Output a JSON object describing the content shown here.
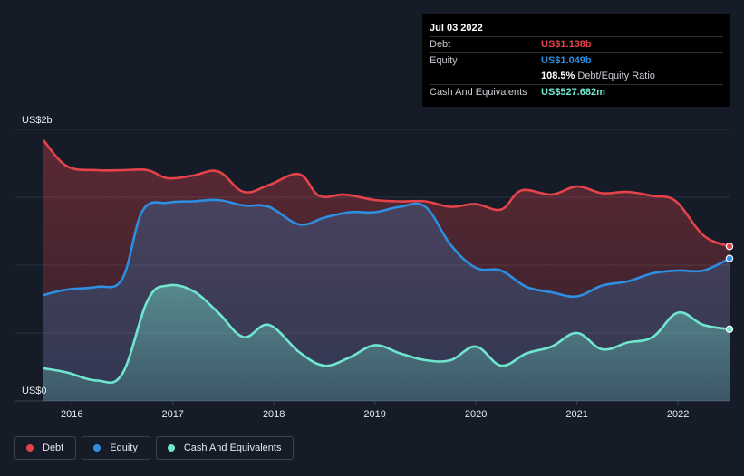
{
  "tooltip": {
    "date": "Jul 03 2022",
    "debt_label": "Debt",
    "debt_value": "US$1.138b",
    "equity_label": "Equity",
    "equity_value": "US$1.049b",
    "ratio_value": "108.5%",
    "ratio_label": "Debt/Equity Ratio",
    "cash_label": "Cash And Equivalents",
    "cash_value": "US$527.682m"
  },
  "legend": {
    "debt": "Debt",
    "equity": "Equity",
    "cash": "Cash And Equivalents"
  },
  "colors": {
    "debt": "#e5434a",
    "equity": "#2d8fe1",
    "cash": "#71e6cf",
    "background": "#151b27"
  },
  "chart_data": {
    "type": "area",
    "title": "",
    "xlabel": "",
    "ylabel": "",
    "y_top_label": "US$2b",
    "y_bottom_label": "US$0",
    "ylim": [
      0,
      2.0
    ],
    "xlim": [
      2015.72,
      2022.51
    ],
    "x_ticks": [
      "2016",
      "2017",
      "2018",
      "2019",
      "2020",
      "2021",
      "2022"
    ],
    "grid": true,
    "legend_position": "bottom-left",
    "series": [
      {
        "name": "Debt",
        "x": [
          2015.72,
          2015.95,
          2016.25,
          2016.5,
          2016.75,
          2016.95,
          2017.2,
          2017.45,
          2017.7,
          2017.95,
          2018.25,
          2018.45,
          2018.7,
          2019.0,
          2019.25,
          2019.5,
          2019.75,
          2020.0,
          2020.25,
          2020.45,
          2020.75,
          2021.0,
          2021.25,
          2021.5,
          2021.75,
          2021.98,
          2022.25,
          2022.51
        ],
        "values": [
          1.92,
          1.73,
          1.7,
          1.7,
          1.7,
          1.64,
          1.66,
          1.69,
          1.54,
          1.59,
          1.67,
          1.51,
          1.52,
          1.48,
          1.47,
          1.47,
          1.43,
          1.45,
          1.41,
          1.55,
          1.52,
          1.58,
          1.53,
          1.54,
          1.51,
          1.47,
          1.22,
          1.138
        ]
      },
      {
        "name": "Equity",
        "x": [
          2015.72,
          2015.95,
          2016.25,
          2016.5,
          2016.7,
          2016.95,
          2017.2,
          2017.45,
          2017.7,
          2017.95,
          2018.25,
          2018.5,
          2018.75,
          2019.0,
          2019.25,
          2019.5,
          2019.75,
          2020.0,
          2020.25,
          2020.5,
          2020.75,
          2021.0,
          2021.25,
          2021.5,
          2021.75,
          2022.0,
          2022.25,
          2022.51
        ],
        "values": [
          0.78,
          0.82,
          0.84,
          0.9,
          1.4,
          1.46,
          1.47,
          1.48,
          1.44,
          1.43,
          1.3,
          1.35,
          1.39,
          1.39,
          1.43,
          1.43,
          1.15,
          0.98,
          0.96,
          0.84,
          0.8,
          0.77,
          0.85,
          0.88,
          0.94,
          0.96,
          0.96,
          1.049
        ]
      },
      {
        "name": "Cash And Equivalents",
        "x": [
          2015.72,
          2015.95,
          2016.25,
          2016.5,
          2016.75,
          2016.95,
          2017.2,
          2017.45,
          2017.7,
          2017.95,
          2018.25,
          2018.5,
          2018.75,
          2019.0,
          2019.25,
          2019.5,
          2019.75,
          2020.0,
          2020.25,
          2020.5,
          2020.75,
          2021.0,
          2021.25,
          2021.5,
          2021.75,
          2022.0,
          2022.25,
          2022.51
        ],
        "values": [
          0.24,
          0.21,
          0.15,
          0.2,
          0.74,
          0.85,
          0.81,
          0.65,
          0.47,
          0.56,
          0.36,
          0.26,
          0.32,
          0.41,
          0.35,
          0.3,
          0.3,
          0.4,
          0.26,
          0.35,
          0.4,
          0.5,
          0.38,
          0.43,
          0.47,
          0.65,
          0.56,
          0.528
        ]
      }
    ]
  }
}
